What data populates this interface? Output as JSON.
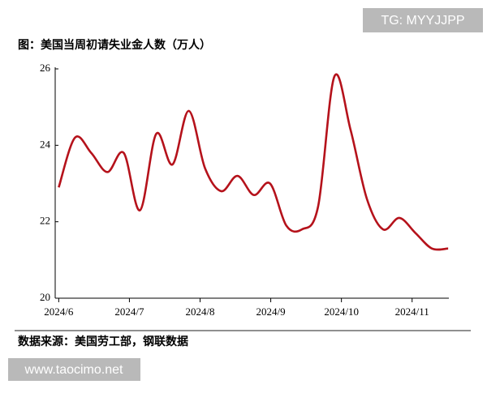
{
  "watermark_top": "TG: MYYJJPP",
  "watermark_bottom": "www.taocimo.net",
  "chart_data": {
    "type": "line",
    "title": "图：美国当周初请失业金人数（万人）",
    "source": "数据来源：美国劳工部，钢联数据",
    "x": [
      0,
      0.23,
      0.46,
      0.69,
      0.92,
      1.15,
      1.38,
      1.61,
      1.84,
      2.07,
      2.3,
      2.53,
      2.76,
      2.99,
      3.22,
      3.44,
      3.67,
      3.9,
      4.13,
      4.36,
      4.59,
      4.82,
      5.05,
      5.28,
      5.51
    ],
    "series": [
      {
        "name": "当周初请失业金人数",
        "color": "#b5121b",
        "values": [
          22.9,
          24.2,
          23.8,
          23.3,
          23.8,
          22.3,
          24.3,
          23.5,
          24.9,
          23.4,
          22.8,
          23.2,
          22.7,
          23.0,
          21.9,
          21.8,
          22.4,
          25.8,
          24.4,
          22.6,
          21.8,
          22.1,
          21.7,
          21.3,
          21.3
        ]
      }
    ],
    "xlim": [
      -0.05,
      5.52
    ],
    "xticks": [
      {
        "value": 0,
        "label": "2024/6"
      },
      {
        "value": 1,
        "label": "2024/7"
      },
      {
        "value": 2,
        "label": "2024/8"
      },
      {
        "value": 3,
        "label": "2024/9"
      },
      {
        "value": 4,
        "label": "2024/10"
      },
      {
        "value": 5,
        "label": "2024/11"
      }
    ],
    "ylim": [
      20,
      26
    ],
    "yticks": [
      20,
      22,
      24,
      26
    ]
  }
}
